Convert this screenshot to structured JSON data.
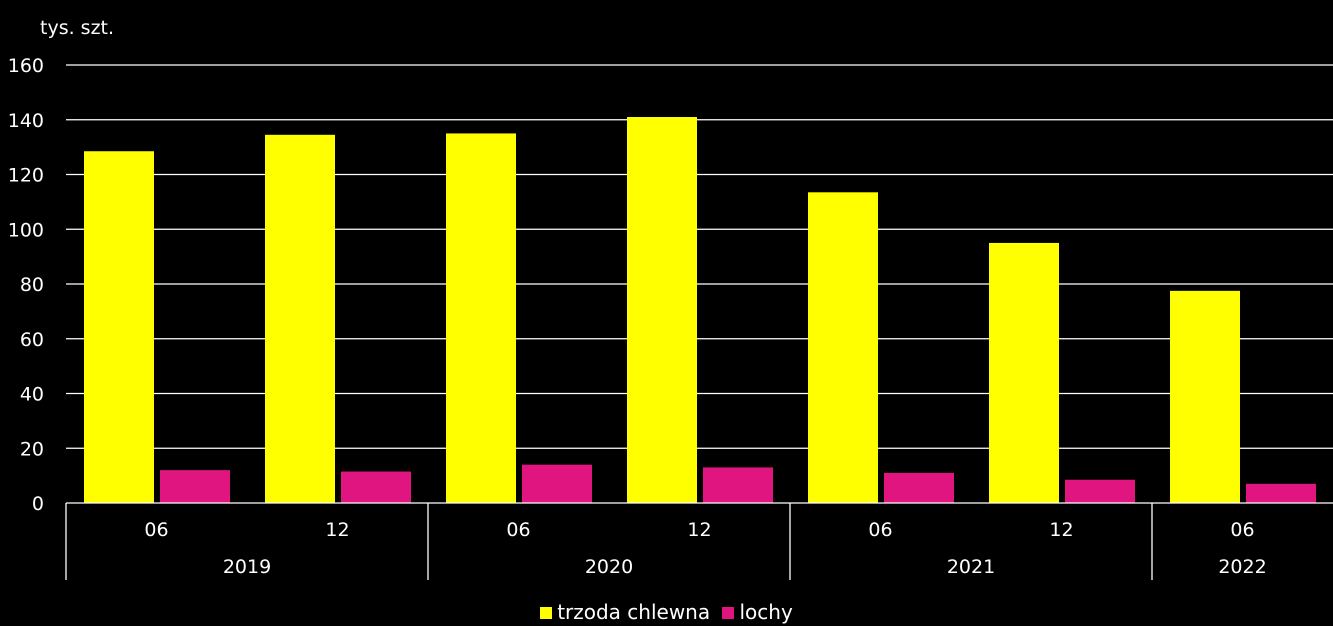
{
  "colors": {
    "background": "#000000",
    "grid": "#ffffff",
    "trzoda": "#ffff00",
    "lochy": "#e0157f"
  },
  "chart_data": {
    "type": "bar",
    "ylabel": "tys. szt.",
    "ylim": [
      0,
      160
    ],
    "yticks": [
      "0",
      "20",
      "40",
      "60",
      "80",
      "100",
      "120",
      "140",
      "160"
    ],
    "grid": true,
    "legend_position": "bottom",
    "categories": [
      "06",
      "12",
      "06",
      "12",
      "06",
      "12",
      "06"
    ],
    "years": [
      {
        "label": "2019",
        "span": 2
      },
      {
        "label": "2020",
        "span": 2
      },
      {
        "label": "2021",
        "span": 2
      },
      {
        "label": "2022",
        "span": 1
      }
    ],
    "series": [
      {
        "name": "trzoda chlewna",
        "color": "#ffff00",
        "values": [
          128.5,
          134.5,
          135,
          141,
          113.5,
          95,
          77.5
        ]
      },
      {
        "name": "lochy",
        "color": "#e0157f",
        "values": [
          12,
          11.5,
          14,
          13,
          11,
          8.5,
          7
        ]
      }
    ]
  }
}
